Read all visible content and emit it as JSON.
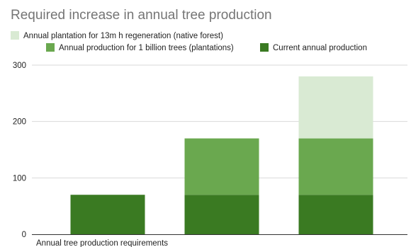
{
  "chart_data": {
    "type": "bar",
    "stacked": true,
    "title": "Required increase in annual tree production",
    "xlabel": "Annual tree production requirements",
    "ylabel": "",
    "ylim": [
      0,
      300
    ],
    "yticks": [
      0,
      100,
      200,
      300
    ],
    "grid": true,
    "legend_position": "top",
    "categories": [
      "",
      "",
      ""
    ],
    "series": [
      {
        "name": "Current annual production",
        "color": "#3a7a22",
        "values": [
          70,
          70,
          70
        ]
      },
      {
        "name": "Annual production for 1 billion trees (plantations)",
        "color": "#6aa84f",
        "values": [
          0,
          100,
          100
        ]
      },
      {
        "name": "Annual plantation for 13m h regeneration (native forest)",
        "color": "#d9ead3",
        "values": [
          0,
          0,
          110
        ]
      }
    ],
    "legend_order": [
      2,
      1,
      0
    ]
  }
}
